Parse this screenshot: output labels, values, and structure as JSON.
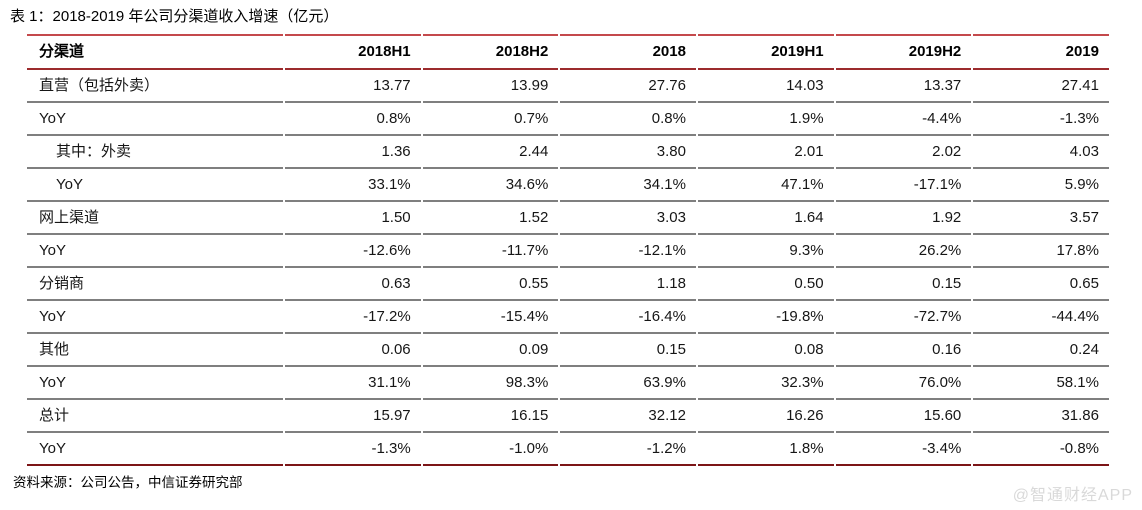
{
  "title": "表 1：2018-2019 年公司分渠道收入增速（亿元）",
  "source": "资料来源：公司公告，中信证券研究部",
  "watermark": "@智通财经APP",
  "colors": {
    "accent_red": "#c4494c",
    "header_rule": "#9c2b2d",
    "row_rule": "#7f7f7f",
    "bottom_rule": "#7c1517",
    "watermark_gray": "#d9d9d9"
  },
  "chart_data": {
    "type": "table",
    "title": "2018-2019 年公司分渠道收入增速（亿元）",
    "columns": [
      "分渠道",
      "2018H1",
      "2018H2",
      "2018",
      "2019H1",
      "2019H2",
      "2019"
    ],
    "rows": [
      {
        "label": "直营（包括外卖）",
        "indent": false,
        "values": [
          "13.77",
          "13.99",
          "27.76",
          "14.03",
          "13.37",
          "27.41"
        ]
      },
      {
        "label": "YoY",
        "indent": false,
        "values": [
          "0.8%",
          "0.7%",
          "0.8%",
          "1.9%",
          "-4.4%",
          "-1.3%"
        ]
      },
      {
        "label": "其中：外卖",
        "indent": true,
        "values": [
          "1.36",
          "2.44",
          "3.80",
          "2.01",
          "2.02",
          "4.03"
        ]
      },
      {
        "label": "YoY",
        "indent": true,
        "values": [
          "33.1%",
          "34.6%",
          "34.1%",
          "47.1%",
          "-17.1%",
          "5.9%"
        ]
      },
      {
        "label": "网上渠道",
        "indent": false,
        "values": [
          "1.50",
          "1.52",
          "3.03",
          "1.64",
          "1.92",
          "3.57"
        ]
      },
      {
        "label": "YoY",
        "indent": false,
        "values": [
          "-12.6%",
          "-11.7%",
          "-12.1%",
          "9.3%",
          "26.2%",
          "17.8%"
        ]
      },
      {
        "label": "分销商",
        "indent": false,
        "values": [
          "0.63",
          "0.55",
          "1.18",
          "0.50",
          "0.15",
          "0.65"
        ]
      },
      {
        "label": "YoY",
        "indent": false,
        "values": [
          "-17.2%",
          "-15.4%",
          "-16.4%",
          "-19.8%",
          "-72.7%",
          "-44.4%"
        ]
      },
      {
        "label": "其他",
        "indent": false,
        "values": [
          "0.06",
          "0.09",
          "0.15",
          "0.08",
          "0.16",
          "0.24"
        ]
      },
      {
        "label": "YoY",
        "indent": false,
        "values": [
          "31.1%",
          "98.3%",
          "63.9%",
          "32.3%",
          "76.0%",
          "58.1%"
        ]
      },
      {
        "label": "总计",
        "indent": false,
        "values": [
          "15.97",
          "16.15",
          "32.12",
          "16.26",
          "15.60",
          "31.86"
        ]
      },
      {
        "label": "YoY",
        "indent": false,
        "values": [
          "-1.3%",
          "-1.0%",
          "-1.2%",
          "1.8%",
          "-3.4%",
          "-0.8%"
        ]
      }
    ]
  }
}
